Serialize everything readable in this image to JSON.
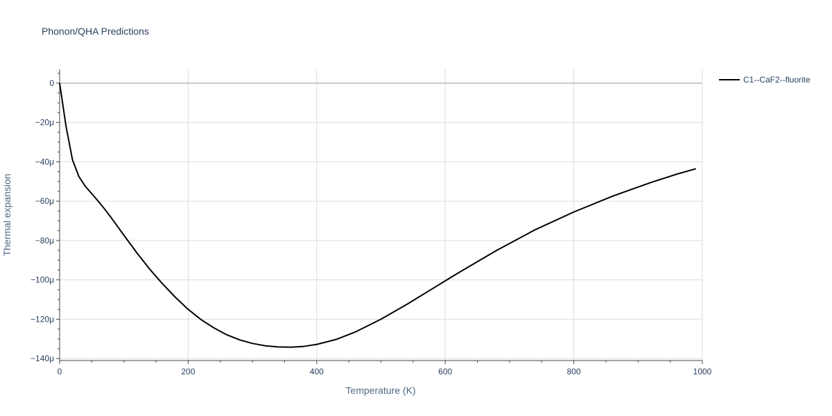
{
  "chart_data": {
    "type": "line",
    "title": "Phonon/QHA Predictions",
    "xlabel": "Temperature (K)",
    "ylabel": "Thermal expansion",
    "xlim": [
      0,
      1000
    ],
    "ylim": [
      -141,
      7
    ],
    "x_ticks": [
      0,
      200,
      400,
      600,
      800,
      1000
    ],
    "x_tick_labels": [
      "0",
      "200",
      "400",
      "600",
      "800",
      "1000"
    ],
    "y_ticks": [
      0,
      -20,
      -40,
      -60,
      -80,
      -100,
      -120,
      -140
    ],
    "y_tick_labels": [
      "0",
      "−20μ",
      "−40μ",
      "−60μ",
      "−80μ",
      "−100μ",
      "−120μ",
      "−140μ"
    ],
    "y_unit_multiplier": 1e-06,
    "grid": true,
    "legend_position": "top-right outside",
    "series": [
      {
        "name": "C1--CaF2--fluorite",
        "color": "#000000",
        "x": [
          0,
          10,
          20,
          30,
          40,
          50,
          60,
          70,
          80,
          100,
          120,
          140,
          160,
          180,
          200,
          220,
          240,
          260,
          280,
          300,
          320,
          340,
          360,
          380,
          400,
          430,
          460,
          500,
          540,
          580,
          620,
          680,
          740,
          800,
          860,
          920,
          960,
          990
        ],
        "y": [
          0,
          -22,
          -39,
          -47.5,
          -52.5,
          -56.2,
          -60,
          -64,
          -68.3,
          -77.3,
          -86.2,
          -94.5,
          -102,
          -108.8,
          -115,
          -120.2,
          -124.4,
          -127.9,
          -130.5,
          -132.3,
          -133.5,
          -134.1,
          -134.2,
          -133.8,
          -132.8,
          -130.3,
          -126.5,
          -120,
          -112.5,
          -104.5,
          -96.5,
          -85,
          -74.5,
          -65.5,
          -57.5,
          -50.5,
          -46.3,
          -43.5
        ]
      }
    ]
  }
}
